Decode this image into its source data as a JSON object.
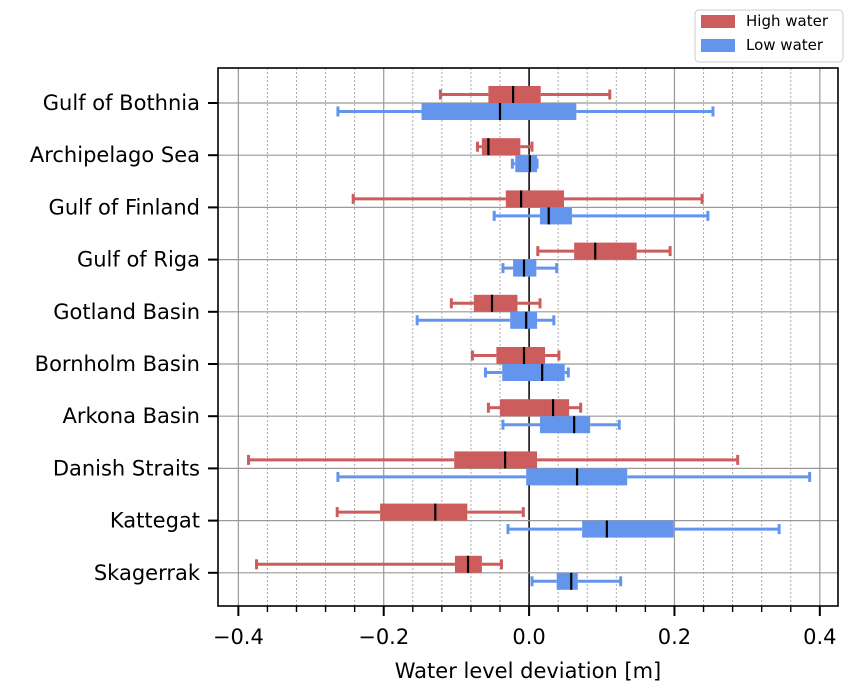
{
  "chart_data": {
    "type": "boxplot-horizontal",
    "xlabel": "Water level deviation [m]",
    "ylabel": "",
    "xlim": [
      -0.428,
      0.425
    ],
    "xticks": [
      -0.4,
      -0.2,
      0.0,
      0.2,
      0.4
    ],
    "xtick_labels": [
      "−0.4",
      "−0.2",
      "0.0",
      "0.2",
      "0.4"
    ],
    "minor_tick_step": 0.04,
    "grid": true,
    "legend_position": "above-top-right",
    "categories": [
      "Gulf of Bothnia",
      "Archipelago Sea",
      "Gulf of Finland",
      "Gulf of Riga",
      "Gotland Basin",
      "Bornholm Basin",
      "Arkona Basin",
      "Danish Straits",
      "Kattegat",
      "Skagerrak"
    ],
    "series": [
      {
        "name": "High water",
        "color": "#cd5c5c",
        "boxes": [
          {
            "whislo": -0.122,
            "q1": -0.056,
            "med": -0.022,
            "q3": 0.016,
            "whishi": 0.111
          },
          {
            "whislo": -0.071,
            "q1": -0.065,
            "med": -0.056,
            "q3": -0.012,
            "whishi": 0.004
          },
          {
            "whislo": -0.242,
            "q1": -0.032,
            "med": -0.011,
            "q3": 0.048,
            "whishi": 0.238
          },
          {
            "whislo": 0.012,
            "q1": 0.062,
            "med": 0.091,
            "q3": 0.148,
            "whishi": 0.194
          },
          {
            "whislo": -0.107,
            "q1": -0.076,
            "med": -0.051,
            "q3": -0.016,
            "whishi": 0.015
          },
          {
            "whislo": -0.078,
            "q1": -0.045,
            "med": -0.007,
            "q3": 0.022,
            "whishi": 0.041
          },
          {
            "whislo": -0.056,
            "q1": -0.04,
            "med": 0.033,
            "q3": 0.055,
            "whishi": 0.071
          },
          {
            "whislo": -0.386,
            "q1": -0.103,
            "med": -0.033,
            "q3": 0.011,
            "whishi": 0.287
          },
          {
            "whislo": -0.264,
            "q1": -0.205,
            "med": -0.129,
            "q3": -0.085,
            "whishi": -0.008
          },
          {
            "whislo": -0.375,
            "q1": -0.102,
            "med": -0.084,
            "q3": -0.065,
            "whishi": -0.038
          }
        ]
      },
      {
        "name": "Low water",
        "color": "#6495ed",
        "boxes": [
          {
            "whislo": -0.263,
            "q1": -0.148,
            "med": -0.04,
            "q3": 0.065,
            "whishi": 0.253
          },
          {
            "whislo": -0.023,
            "q1": -0.019,
            "med": 0.001,
            "q3": 0.011,
            "whishi": 0.011
          },
          {
            "whislo": -0.048,
            "q1": 0.015,
            "med": 0.027,
            "q3": 0.059,
            "whishi": 0.246
          },
          {
            "whislo": -0.036,
            "q1": -0.022,
            "med": -0.007,
            "q3": 0.01,
            "whishi": 0.038
          },
          {
            "whislo": -0.154,
            "q1": -0.026,
            "med": -0.004,
            "q3": 0.011,
            "whishi": 0.034
          },
          {
            "whislo": -0.06,
            "q1": -0.037,
            "med": 0.018,
            "q3": 0.049,
            "whishi": 0.054
          },
          {
            "whislo": -0.036,
            "q1": 0.015,
            "med": 0.062,
            "q3": 0.084,
            "whishi": 0.124
          },
          {
            "whislo": -0.263,
            "q1": -0.004,
            "med": 0.066,
            "q3": 0.135,
            "whishi": 0.386
          },
          {
            "whislo": -0.029,
            "q1": 0.073,
            "med": 0.107,
            "q3": 0.199,
            "whishi": 0.344
          },
          {
            "whislo": 0.004,
            "q1": 0.038,
            "med": 0.058,
            "q3": 0.067,
            "whishi": 0.126
          }
        ]
      }
    ]
  }
}
